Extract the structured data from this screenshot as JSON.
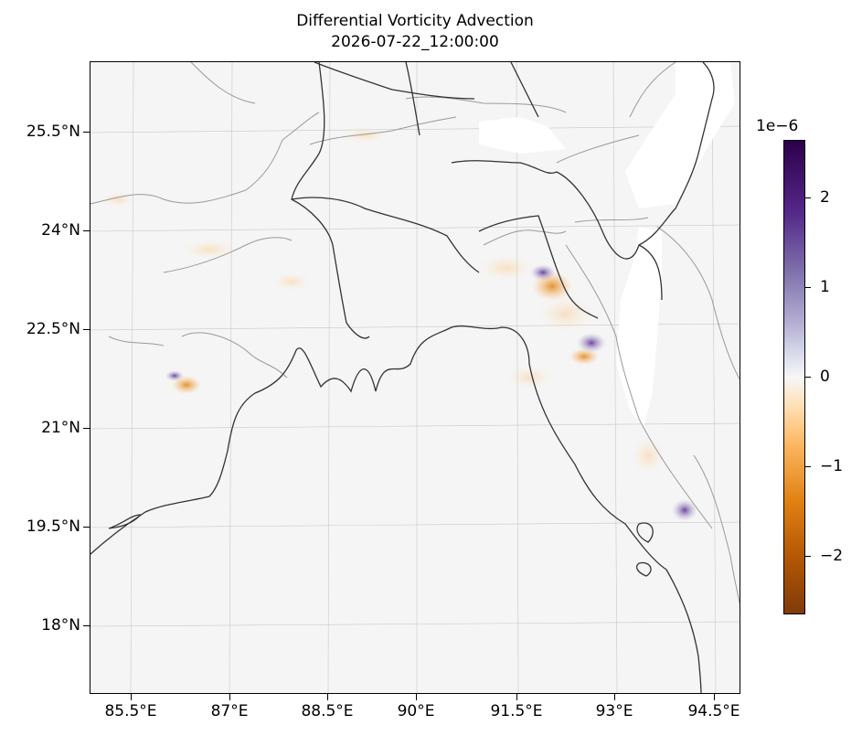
{
  "title": "Differential Vorticity Advection",
  "subtitle": "2026-07-22_12:00:00",
  "map": {
    "lat_labels": [
      "25.5°N",
      "24°N",
      "22.5°N",
      "21°N",
      "19.5°N",
      "18°N"
    ],
    "lon_labels": [
      "85.5°E",
      "87°E",
      "88.5°E",
      "90°E",
      "91.5°E",
      "93°E",
      "94.5°E"
    ],
    "colormap": "PuOr",
    "colors": {
      "positive": "#2d004b",
      "neutral": "#f7f7f7",
      "negative": "#7f3b08",
      "coastline": "#333333",
      "borders": "#999999"
    }
  },
  "colorbar": {
    "exponent_label": "1e−6",
    "ticks": [
      "2",
      "1",
      "0",
      "−1",
      "−2"
    ],
    "tick_values": [
      2,
      1,
      0,
      -1,
      -2
    ],
    "range": [
      -2.6,
      2.6
    ]
  }
}
